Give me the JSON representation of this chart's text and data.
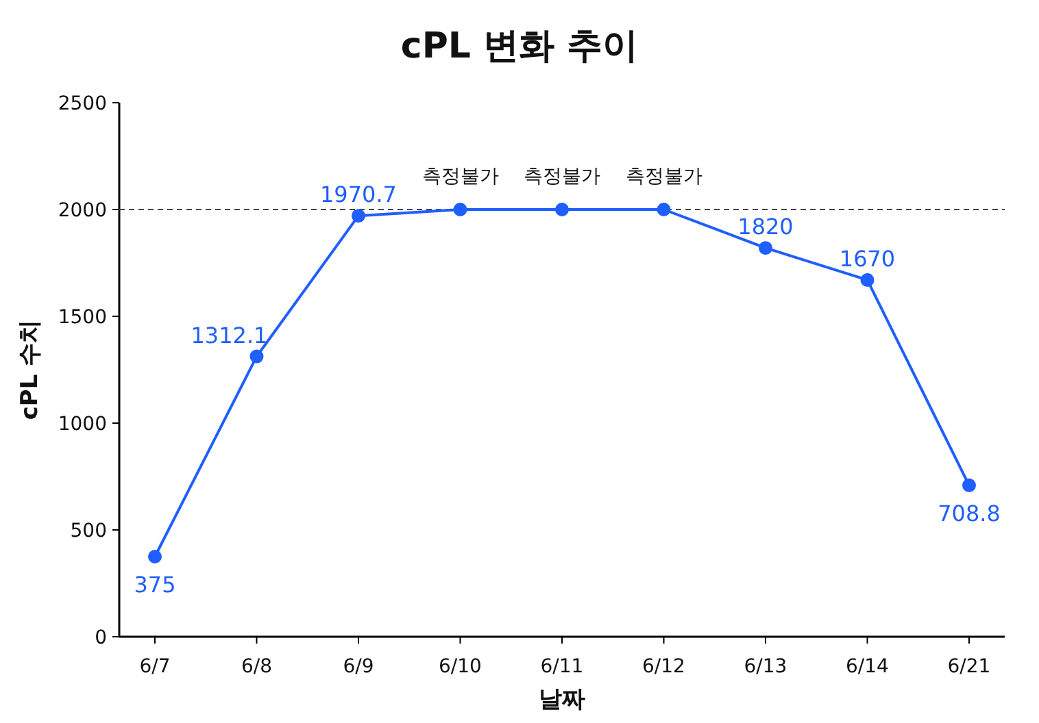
{
  "chart_data": {
    "type": "line",
    "title": "cPL 변화 추이",
    "xlabel": "날짜",
    "ylabel": "cPL 수치",
    "categories": [
      "6/7",
      "6/8",
      "6/9",
      "6/10",
      "6/11",
      "6/12",
      "6/13",
      "6/14",
      "6/21"
    ],
    "series": [
      {
        "color": "#1f5eff",
        "values": [
          375,
          1312.1,
          1970.7,
          2000,
          2000,
          2000,
          1820,
          1670,
          708.8
        ],
        "value_labels": [
          "375",
          "1312.1",
          "1970.7",
          null,
          null,
          null,
          "1820",
          "1670",
          "708.8"
        ]
      }
    ],
    "annotations": [
      {
        "text": "측정불가",
        "x": "6/10",
        "y": 2000
      },
      {
        "text": "측정불가",
        "x": "6/11",
        "y": 2000
      },
      {
        "text": "측정불가",
        "x": "6/12",
        "y": 2000
      }
    ],
    "ylim": [
      0,
      2500
    ],
    "yticks": [
      0,
      500,
      1000,
      1500,
      2000,
      2500
    ],
    "ref_lines": [
      {
        "axis": "y",
        "value": 2000,
        "color": "#444444",
        "line_style": "dashed"
      }
    ],
    "grid": false,
    "marker": "circle",
    "line_style": "solid"
  }
}
